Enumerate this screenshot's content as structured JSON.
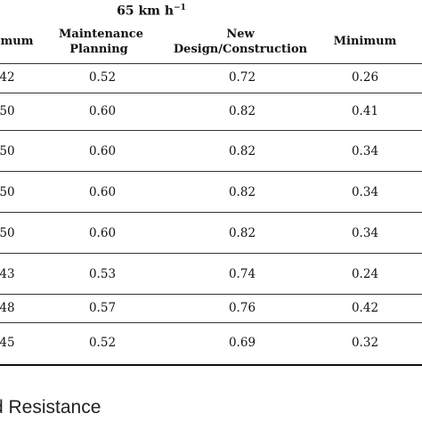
{
  "group_header": {
    "text": "65 km h",
    "sup": "−1"
  },
  "columns": {
    "col0": "mum",
    "col1_line1": "Maintenance",
    "col1_line2": "Planning",
    "col2_line1": "New",
    "col2_line2": "Design/Construction",
    "col3": "Minimum"
  },
  "rows": [
    {
      "c0": "42",
      "c1": "0.52",
      "c2": "0.72",
      "c3": "0.26"
    },
    {
      "c0": "50",
      "c1": "0.60",
      "c2": "0.82",
      "c3": "0.41"
    },
    {
      "c0": "50",
      "c1": "0.60",
      "c2": "0.82",
      "c3": "0.34"
    },
    {
      "c0": "50",
      "c1": "0.60",
      "c2": "0.82",
      "c3": "0.34"
    },
    {
      "c0": "50",
      "c1": "0.60",
      "c2": "0.82",
      "c3": "0.34"
    },
    {
      "c0": "43",
      "c1": "0.53",
      "c2": "0.74",
      "c3": "0.24"
    },
    {
      "c0": "48",
      "c1": "0.57",
      "c2": "0.76",
      "c3": "0.42"
    },
    {
      "c0": "45",
      "c1": "0.52",
      "c2": "0.69",
      "c3": "0.32"
    }
  ],
  "caption": "d Resistance"
}
